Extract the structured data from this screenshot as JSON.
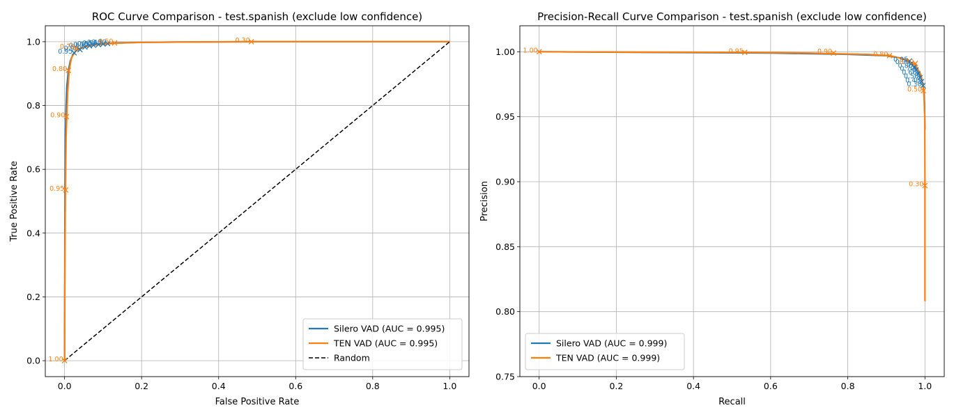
{
  "chart_data": [
    {
      "type": "line",
      "title": "ROC Curve Comparison - test.spanish (exclude low confidence)",
      "xlabel": "False Positive Rate",
      "ylabel": "True Positive Rate",
      "xlim": [
        -0.05,
        1.05
      ],
      "ylim": [
        -0.05,
        1.05
      ],
      "xticks": [
        "0.0",
        "0.2",
        "0.4",
        "0.6",
        "0.8",
        "1.0"
      ],
      "yticks": [
        "0.0",
        "0.2",
        "0.4",
        "0.6",
        "0.8",
        "1.0"
      ],
      "grid": true,
      "legend_position": "bottom-right",
      "series": [
        {
          "name": "Silero VAD (AUC = 0.995)",
          "color": "#1f77b4",
          "style": "solid",
          "x": [
            0.0,
            0.001,
            0.002,
            0.004,
            0.006,
            0.01,
            0.015,
            0.022,
            0.03,
            0.04,
            0.055,
            0.07,
            0.09,
            0.11,
            0.13,
            0.2,
            0.3,
            0.5,
            0.7,
            1.0
          ],
          "y": [
            0.0,
            0.5,
            0.7,
            0.8,
            0.86,
            0.91,
            0.94,
            0.96,
            0.972,
            0.979,
            0.985,
            0.989,
            0.992,
            0.994,
            0.996,
            0.998,
            0.999,
            1.0,
            1.0,
            1.0
          ],
          "markers": [
            {
              "x": 0.025,
              "y": 0.965,
              "label": "0.95"
            },
            {
              "x": 0.04,
              "y": 0.975,
              "label": "0.90"
            },
            {
              "x": 0.053,
              "y": 0.983,
              "label": "0.80"
            },
            {
              "x": 0.065,
              "y": 0.987,
              "label": "0.70"
            },
            {
              "x": 0.075,
              "y": 0.989,
              "label": "0.60"
            },
            {
              "x": 0.088,
              "y": 0.991,
              "label": "0.50"
            },
            {
              "x": 0.1,
              "y": 0.993,
              "label": "0.40"
            },
            {
              "x": 0.112,
              "y": 0.994,
              "label": "0.30"
            }
          ]
        },
        {
          "name": "TEN VAD (AUC = 0.995)",
          "color": "#ff7f0e",
          "style": "solid",
          "x": [
            0.0,
            0.001,
            0.002,
            0.003,
            0.004,
            0.006,
            0.008,
            0.012,
            0.018,
            0.03,
            0.05,
            0.08,
            0.13,
            0.2,
            0.3,
            0.48,
            0.7,
            1.0
          ],
          "y": [
            0.0,
            0.3,
            0.5,
            0.6,
            0.7,
            0.77,
            0.84,
            0.91,
            0.95,
            0.972,
            0.983,
            0.99,
            0.995,
            0.998,
            0.999,
            1.0,
            1.0,
            1.0
          ],
          "markers": [
            {
              "x": 0.0,
              "y": 0.0,
              "label": "1.00"
            },
            {
              "x": 0.003,
              "y": 0.535,
              "label": "0.95"
            },
            {
              "x": 0.005,
              "y": 0.765,
              "label": "0.90"
            },
            {
              "x": 0.01,
              "y": 0.91,
              "label": "0.80"
            },
            {
              "x": 0.03,
              "y": 0.98,
              "label": "0.70"
            },
            {
              "x": 0.13,
              "y": 0.996,
              "label": "0.50"
            },
            {
              "x": 0.485,
              "y": 1.0,
              "label": "0.30"
            }
          ]
        },
        {
          "name": "Random",
          "color": "#000000",
          "style": "dashed",
          "x": [
            0.0,
            1.0
          ],
          "y": [
            0.0,
            1.0
          ],
          "markers": []
        }
      ]
    },
    {
      "type": "line",
      "title": "Precision-Recall Curve Comparison - test.spanish (exclude low confidence)",
      "xlabel": "Recall",
      "ylabel": "Precision",
      "xlim": [
        -0.05,
        1.05
      ],
      "ylim": [
        0.75,
        1.02
      ],
      "xticks": [
        "0.0",
        "0.2",
        "0.4",
        "0.6",
        "0.8",
        "1.0"
      ],
      "yticks": [
        "0.75",
        "0.80",
        "0.85",
        "0.90",
        "0.95",
        "1.00"
      ],
      "grid": true,
      "legend_position": "bottom-left",
      "series": [
        {
          "name": "Silero VAD (AUC = 0.999)",
          "color": "#1f77b4",
          "style": "solid",
          "x": [
            0.0,
            0.3,
            0.6,
            0.8,
            0.9,
            0.94,
            0.96,
            0.975,
            0.985,
            0.993,
            0.997,
            0.999,
            1.0
          ],
          "y": [
            1.0,
            0.9995,
            0.999,
            0.998,
            0.997,
            0.995,
            0.992,
            0.988,
            0.983,
            0.977,
            0.97,
            0.96,
            0.94
          ],
          "markers": [
            {
              "x": 0.96,
              "y": 0.993,
              "label": "0.95"
            },
            {
              "x": 0.965,
              "y": 0.991,
              "label": "0.90"
            },
            {
              "x": 0.972,
              "y": 0.988,
              "label": "0.80"
            },
            {
              "x": 0.977,
              "y": 0.986,
              "label": "0.70"
            },
            {
              "x": 0.982,
              "y": 0.983,
              "label": "0.60"
            },
            {
              "x": 0.987,
              "y": 0.98,
              "label": "0.50"
            },
            {
              "x": 0.991,
              "y": 0.977,
              "label": "0.40"
            },
            {
              "x": 0.995,
              "y": 0.974,
              "label": "0.30"
            }
          ]
        },
        {
          "name": "TEN VAD (AUC = 0.999)",
          "color": "#ff7f0e",
          "style": "solid",
          "x": [
            0.0,
            0.3,
            0.53,
            0.7,
            0.76,
            0.85,
            0.91,
            0.95,
            0.975,
            0.99,
            0.997,
            0.9995,
            1.0,
            1.0,
            1.0
          ],
          "y": [
            1.0,
            0.9997,
            0.9995,
            0.999,
            0.9985,
            0.998,
            0.997,
            0.994,
            0.99,
            0.982,
            0.97,
            0.95,
            0.9,
            0.85,
            0.808
          ],
          "markers": [
            {
              "x": 0.0,
              "y": 1.0,
              "label": "1.00"
            },
            {
              "x": 0.533,
              "y": 0.9995,
              "label": "0.95"
            },
            {
              "x": 0.763,
              "y": 0.999,
              "label": "0.90"
            },
            {
              "x": 0.908,
              "y": 0.997,
              "label": "0.80"
            },
            {
              "x": 0.975,
              "y": 0.991,
              "label": "0.70"
            },
            {
              "x": 0.996,
              "y": 0.97,
              "label": "0.50"
            },
            {
              "x": 1.0,
              "y": 0.897,
              "label": "0.30"
            }
          ]
        }
      ]
    }
  ]
}
